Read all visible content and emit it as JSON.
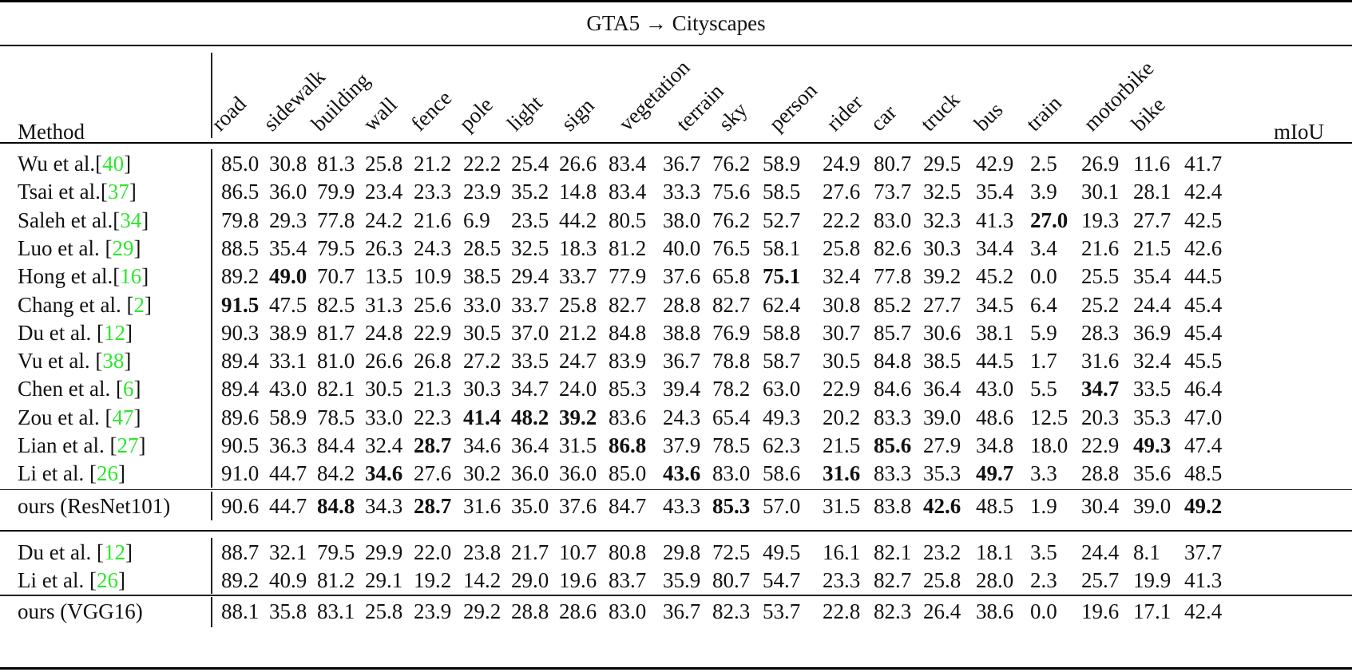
{
  "title": "GTA5 → Cityscapes",
  "header": {
    "method_label": "Method",
    "columns": [
      "road",
      "sidewalk",
      "building",
      "wall",
      "fence",
      "pole",
      "light",
      "sign",
      "vegetation",
      "terrain",
      "sky",
      "person",
      "rider",
      "car",
      "truck",
      "bus",
      "train",
      "motorbike",
      "bike"
    ],
    "miou_label": "mIoU"
  },
  "colors": {
    "citation": "#2ee62e",
    "text": "#111111",
    "rules": "#000000"
  },
  "groups": [
    {
      "name": "resnet101",
      "rows": [
        {
          "method": "Wu et al.",
          "cite": "40",
          "sep": "",
          "values": [
            "85.0",
            "30.8",
            "81.3",
            "25.8",
            "21.2",
            "22.2",
            "25.4",
            "26.6",
            "83.4",
            "36.7",
            "76.2",
            "58.9",
            "24.9",
            "80.7",
            "29.5",
            "42.9",
            "2.5",
            "26.9",
            "11.6",
            "41.7"
          ],
          "bold": []
        },
        {
          "method": "Tsai et al.",
          "cite": "37",
          "sep": "",
          "values": [
            "86.5",
            "36.0",
            "79.9",
            "23.4",
            "23.3",
            "23.9",
            "35.2",
            "14.8",
            "83.4",
            "33.3",
            "75.6",
            "58.5",
            "27.6",
            "73.7",
            "32.5",
            "35.4",
            "3.9",
            "30.1",
            "28.1",
            "42.4"
          ],
          "bold": []
        },
        {
          "method": "Saleh et al.",
          "cite": "34",
          "sep": "",
          "values": [
            "79.8",
            "29.3",
            "77.8",
            "24.2",
            "21.6",
            "6.9",
            "23.5",
            "44.2",
            "80.5",
            "38.0",
            "76.2",
            "52.7",
            "22.2",
            "83.0",
            "32.3",
            "41.3",
            "27.0",
            "19.3",
            "27.7",
            "42.5"
          ],
          "bold": [
            16
          ]
        },
        {
          "method": "Luo et al.",
          "cite": "29",
          "sep": " ",
          "values": [
            "88.5",
            "35.4",
            "79.5",
            "26.3",
            "24.3",
            "28.5",
            "32.5",
            "18.3",
            "81.2",
            "40.0",
            "76.5",
            "58.1",
            "25.8",
            "82.6",
            "30.3",
            "34.4",
            "3.4",
            "21.6",
            "21.5",
            "42.6"
          ],
          "bold": []
        },
        {
          "method": "Hong et al.",
          "cite": "16",
          "sep": "",
          "values": [
            "89.2",
            "49.0",
            "70.7",
            "13.5",
            "10.9",
            "38.5",
            "29.4",
            "33.7",
            "77.9",
            "37.6",
            "65.8",
            "75.1",
            "32.4",
            "77.8",
            "39.2",
            "45.2",
            "0.0",
            "25.5",
            "35.4",
            "44.5"
          ],
          "bold": [
            1,
            11
          ]
        },
        {
          "method": "Chang et al.",
          "cite": "2",
          "sep": " ",
          "values": [
            "91.5",
            "47.5",
            "82.5",
            "31.3",
            "25.6",
            "33.0",
            "33.7",
            "25.8",
            "82.7",
            "28.8",
            "82.7",
            "62.4",
            "30.8",
            "85.2",
            "27.7",
            "34.5",
            "6.4",
            "25.2",
            "24.4",
            "45.4"
          ],
          "bold": [
            0
          ]
        },
        {
          "method": "Du et al.",
          "cite": "12",
          "sep": " ",
          "values": [
            "90.3",
            "38.9",
            "81.7",
            "24.8",
            "22.9",
            "30.5",
            "37.0",
            "21.2",
            "84.8",
            "38.8",
            "76.9",
            "58.8",
            "30.7",
            "85.7",
            "30.6",
            "38.1",
            "5.9",
            "28.3",
            "36.9",
            "45.4"
          ],
          "bold": []
        },
        {
          "method": "Vu et al.",
          "cite": "38",
          "sep": " ",
          "values": [
            "89.4",
            "33.1",
            "81.0",
            "26.6",
            "26.8",
            "27.2",
            "33.5",
            "24.7",
            "83.9",
            "36.7",
            "78.8",
            "58.7",
            "30.5",
            "84.8",
            "38.5",
            "44.5",
            "1.7",
            "31.6",
            "32.4",
            "45.5"
          ],
          "bold": []
        },
        {
          "method": "Chen et al.",
          "cite": "6",
          "sep": " ",
          "values": [
            "89.4",
            "43.0",
            "82.1",
            "30.5",
            "21.3",
            "30.3",
            "34.7",
            "24.0",
            "85.3",
            "39.4",
            "78.2",
            "63.0",
            "22.9",
            "84.6",
            "36.4",
            "43.0",
            "5.5",
            "34.7",
            "33.5",
            "46.4"
          ],
          "bold": [
            17
          ]
        },
        {
          "method": "Zou et al.",
          "cite": "47",
          "sep": " ",
          "values": [
            "89.6",
            "58.9",
            "78.5",
            "33.0",
            "22.3",
            "41.4",
            "48.2",
            "39.2",
            "83.6",
            "24.3",
            "65.4",
            "49.3",
            "20.2",
            "83.3",
            "39.0",
            "48.6",
            "12.5",
            "20.3",
            "35.3",
            "47.0"
          ],
          "bold": [
            5,
            6,
            7
          ]
        },
        {
          "method": "Lian et al.",
          "cite": "27",
          "sep": " ",
          "values": [
            "90.5",
            "36.3",
            "84.4",
            "32.4",
            "28.7",
            "34.6",
            "36.4",
            "31.5",
            "86.8",
            "37.9",
            "78.5",
            "62.3",
            "21.5",
            "85.6",
            "27.9",
            "34.8",
            "18.0",
            "22.9",
            "49.3",
            "47.4"
          ],
          "bold": [
            4,
            8,
            13,
            18
          ]
        },
        {
          "method": "Li et al.",
          "cite": "26",
          "sep": " ",
          "values": [
            "91.0",
            "44.7",
            "84.2",
            "34.6",
            "27.6",
            "30.2",
            "36.0",
            "36.0",
            "85.0",
            "43.6",
            "83.0",
            "58.6",
            "31.6",
            "83.3",
            "35.3",
            "49.7",
            "3.3",
            "28.8",
            "35.6",
            "48.5"
          ],
          "bold": [
            3,
            9,
            12,
            15
          ]
        }
      ],
      "ours": {
        "method": "ours (ResNet101)",
        "values": [
          "90.6",
          "44.7",
          "84.8",
          "34.3",
          "28.7",
          "31.6",
          "35.0",
          "37.6",
          "84.7",
          "43.3",
          "85.3",
          "57.0",
          "31.5",
          "83.8",
          "42.6",
          "48.5",
          "1.9",
          "30.4",
          "39.0",
          "49.2"
        ],
        "bold": [
          2,
          4,
          10,
          14,
          19
        ]
      }
    },
    {
      "name": "vgg16",
      "rows": [
        {
          "method": "Du et al.",
          "cite": "12",
          "sep": " ",
          "values": [
            "88.7",
            "32.1",
            "79.5",
            "29.9",
            "22.0",
            "23.8",
            "21.7",
            "10.7",
            "80.8",
            "29.8",
            "72.5",
            "49.5",
            "16.1",
            "82.1",
            "23.2",
            "18.1",
            "3.5",
            "24.4",
            "8.1",
            "37.7"
          ],
          "bold": []
        },
        {
          "method": "Li et al.",
          "cite": "26",
          "sep": " ",
          "values": [
            "89.2",
            "40.9",
            "81.2",
            "29.1",
            "19.2",
            "14.2",
            "29.0",
            "19.6",
            "83.7",
            "35.9",
            "80.7",
            "54.7",
            "23.3",
            "82.7",
            "25.8",
            "28.0",
            "2.3",
            "25.7",
            "19.9",
            "41.3"
          ],
          "bold": []
        }
      ],
      "ours": {
        "method": "ours (VGG16)",
        "values": [
          "88.1",
          "35.8",
          "83.1",
          "25.8",
          "23.9",
          "29.2",
          "28.8",
          "28.6",
          "83.0",
          "36.7",
          "82.3",
          "53.7",
          "22.8",
          "82.3",
          "26.4",
          "38.6",
          "0.0",
          "19.6",
          "17.1",
          "42.4"
        ],
        "bold": []
      }
    }
  ]
}
